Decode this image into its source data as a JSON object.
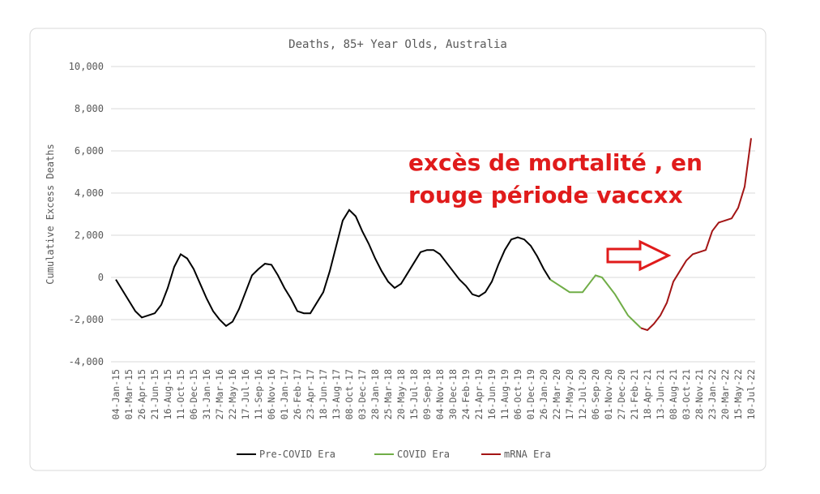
{
  "chart_data": {
    "type": "line",
    "title": "Deaths, 85+ Year Olds, Australia",
    "y_label": "Cumulative Excess Deaths",
    "annotation": [
      "excès de mortalité , en",
      "rouge période vaccxx"
    ],
    "annotation_color": "#e01b1b",
    "grid": true,
    "ylim": [
      -4000,
      10000
    ],
    "yticks": [
      {
        "value": -4000,
        "label": "-4,000"
      },
      {
        "value": -2000,
        "label": "-2,000"
      },
      0,
      {
        "value": 2000,
        "label": "2,000"
      },
      {
        "value": 4000,
        "label": "4,000"
      },
      {
        "value": 6000,
        "label": "6,000"
      },
      {
        "value": 8000,
        "label": "8,000"
      },
      {
        "value": 10000,
        "label": "10,000"
      }
    ],
    "categories": [
      "04-Jan-15",
      null,
      "01-Mar-15",
      null,
      "26-Apr-15",
      null,
      "21-Jun-15",
      null,
      "16-Aug-15",
      null,
      "11-Oct-15",
      null,
      "06-Dec-15",
      null,
      "31-Jan-16",
      null,
      "27-Mar-16",
      null,
      "22-May-16",
      null,
      "17-Jul-16",
      null,
      "11-Sep-16",
      null,
      "06-Nov-16",
      null,
      "01-Jan-17",
      null,
      "26-Feb-17",
      null,
      "23-Apr-17",
      null,
      "18-Jun-17",
      null,
      "13-Aug-17",
      null,
      "08-Oct-17",
      null,
      "03-Dec-17",
      null,
      "28-Jan-18",
      null,
      "25-Mar-18",
      null,
      "20-May-18",
      null,
      "15-Jul-18",
      null,
      "09-Sep-18",
      null,
      "04-Nov-18",
      null,
      "30-Dec-18",
      null,
      "24-Feb-19",
      null,
      "21-Apr-19",
      null,
      "16-Jun-19",
      null,
      "11-Aug-19",
      null,
      "06-Oct-19",
      null,
      "01-Dec-19",
      null,
      "26-Jan-20",
      null,
      "22-Mar-20",
      null,
      "17-May-20",
      null,
      "12-Jul-20",
      null,
      "06-Sep-20",
      null,
      "01-Nov-20",
      null,
      "27-Dec-20",
      null,
      "21-Feb-21",
      null,
      "18-Apr-21",
      null,
      "13-Jun-21",
      null,
      "08-Aug-21",
      null,
      "03-Oct-21",
      null,
      "28-Nov-21",
      null,
      "23-Jan-22",
      null,
      "20-Mar-22",
      null,
      "15-May-22",
      null,
      "10-Jul-22"
    ],
    "series": [
      {
        "name": "Pre-COVID Era",
        "color": "#000000",
        "values": [
          -100,
          -600,
          -1100,
          -1600,
          -1900,
          -1800,
          -1700,
          -1300,
          -500,
          500,
          1100,
          900,
          400,
          -300,
          -1000,
          -1600,
          -2000,
          -2300,
          -2100,
          -1500,
          -700,
          100,
          400,
          650,
          600,
          100,
          -500,
          -1000,
          -1600,
          -1700,
          -1700,
          -1200,
          -700,
          300,
          1500,
          2700,
          3200,
          2900,
          2200,
          1600,
          900,
          300,
          -200,
          -500,
          -300,
          200,
          700,
          1200,
          1300,
          1300,
          1100,
          700,
          300,
          -100,
          -400,
          -800,
          -900,
          -700,
          -200,
          600,
          1300,
          1800,
          1900,
          1800,
          1500,
          1000,
          400,
          -100,
          null,
          null,
          null,
          null,
          null,
          null,
          null,
          null,
          null,
          null,
          null,
          null,
          null,
          null,
          null,
          null,
          null,
          null,
          null,
          null,
          null,
          null,
          null,
          null,
          null,
          null,
          null,
          null,
          null,
          null,
          null
        ]
      },
      {
        "name": "COVID Era",
        "color": "#70ad47",
        "values": [
          null,
          null,
          null,
          null,
          null,
          null,
          null,
          null,
          null,
          null,
          null,
          null,
          null,
          null,
          null,
          null,
          null,
          null,
          null,
          null,
          null,
          null,
          null,
          null,
          null,
          null,
          null,
          null,
          null,
          null,
          null,
          null,
          null,
          null,
          null,
          null,
          null,
          null,
          null,
          null,
          null,
          null,
          null,
          null,
          null,
          null,
          null,
          null,
          null,
          null,
          null,
          null,
          null,
          null,
          null,
          null,
          null,
          null,
          null,
          null,
          null,
          null,
          null,
          null,
          null,
          null,
          null,
          -100,
          -300,
          -500,
          -700,
          -700,
          -700,
          -300,
          100,
          0,
          -400,
          -800,
          -1300,
          -1800,
          -2100,
          -2400,
          null,
          null,
          null,
          null,
          null,
          null,
          null,
          null,
          null,
          null,
          null,
          null,
          null,
          null,
          null,
          null,
          null
        ]
      },
      {
        "name": "mRNA Era",
        "color": "#a31515",
        "values": [
          null,
          null,
          null,
          null,
          null,
          null,
          null,
          null,
          null,
          null,
          null,
          null,
          null,
          null,
          null,
          null,
          null,
          null,
          null,
          null,
          null,
          null,
          null,
          null,
          null,
          null,
          null,
          null,
          null,
          null,
          null,
          null,
          null,
          null,
          null,
          null,
          null,
          null,
          null,
          null,
          null,
          null,
          null,
          null,
          null,
          null,
          null,
          null,
          null,
          null,
          null,
          null,
          null,
          null,
          null,
          null,
          null,
          null,
          null,
          null,
          null,
          null,
          null,
          null,
          null,
          null,
          null,
          null,
          null,
          null,
          null,
          null,
          null,
          null,
          null,
          null,
          null,
          null,
          null,
          null,
          null,
          -2400,
          -2500,
          -2200,
          -1800,
          -1200,
          -200,
          300,
          800,
          1100,
          1200,
          1300,
          2200,
          2600,
          2700,
          2800,
          3300,
          4300,
          6600
        ]
      }
    ]
  }
}
